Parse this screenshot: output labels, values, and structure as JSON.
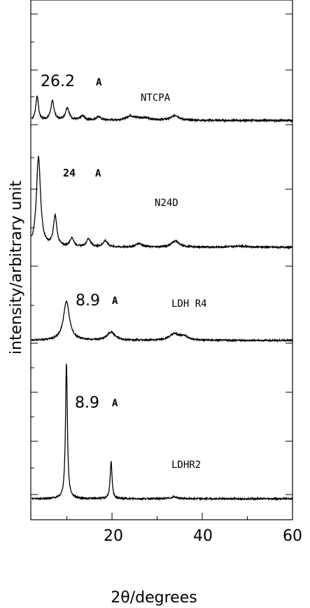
{
  "chart_data": {
    "type": "line",
    "xlabel": "2θ/degrees",
    "ylabel": "intensity/arbitrary unit",
    "xlim": [
      2,
      60
    ],
    "x_ticks": [
      "20",
      "40",
      "60"
    ],
    "y_ticks_labeled": false,
    "grid": false,
    "series": [
      {
        "name": "NTCPA",
        "annotation_value": "26.2",
        "annotation_unit": "A",
        "peaks": [
          {
            "x": 3.4,
            "height": 0.35,
            "width": 0.35
          },
          {
            "x": 6.8,
            "height": 0.27,
            "width": 0.45
          },
          {
            "x": 10.1,
            "height": 0.18,
            "width": 0.5
          },
          {
            "x": 13.5,
            "height": 0.06,
            "width": 0.6
          },
          {
            "x": 17.0,
            "height": 0.05,
            "width": 0.6
          },
          {
            "x": 24.0,
            "height": 0.05,
            "width": 0.8
          },
          {
            "x": 26.5,
            "height": 0.04,
            "width": 2.5
          },
          {
            "x": 34.0,
            "height": 0.07,
            "width": 1.0
          }
        ]
      },
      {
        "name": "N24D",
        "annotation_value": "24",
        "annotation_unit": "A",
        "peaks": [
          {
            "x": 3.7,
            "height": 1.43,
            "width": 0.55
          },
          {
            "x": 7.4,
            "height": 0.48,
            "width": 0.45
          },
          {
            "x": 11.1,
            "height": 0.14,
            "width": 0.5
          },
          {
            "x": 14.8,
            "height": 0.13,
            "width": 0.55
          },
          {
            "x": 18.5,
            "height": 0.1,
            "width": 0.6
          },
          {
            "x": 26.0,
            "height": 0.06,
            "width": 0.8
          },
          {
            "x": 34.0,
            "height": 0.1,
            "width": 1.0
          },
          {
            "x": 48.0,
            "height": 0.02,
            "width": 2.0
          }
        ]
      },
      {
        "name": "LDH R4",
        "annotation_value": "8.9",
        "annotation_unit": "A",
        "peaks": [
          {
            "x": 9.9,
            "height": 0.62,
            "width": 0.8
          },
          {
            "x": 19.8,
            "height": 0.13,
            "width": 1.0
          },
          {
            "x": 33.8,
            "height": 0.1,
            "width": 1.3
          },
          {
            "x": 36.0,
            "height": 0.06,
            "width": 1.0
          }
        ]
      },
      {
        "name": "LDHR2",
        "annotation_value": "8.9",
        "annotation_unit": "A",
        "peaks": [
          {
            "x": 9.9,
            "height": 2.2,
            "width": 0.25
          },
          {
            "x": 19.8,
            "height": 0.6,
            "width": 0.25
          },
          {
            "x": 33.8,
            "height": 0.03,
            "width": 0.8
          }
        ]
      }
    ]
  }
}
